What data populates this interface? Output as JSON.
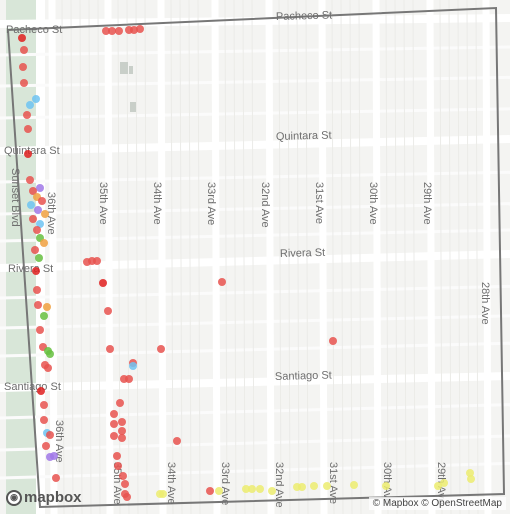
{
  "map": {
    "streets_horizontal": [
      "Pacheco St",
      "Quintara St",
      "Rivera St",
      "Santiago St"
    ],
    "streets_vertical": [
      "36th Ave",
      "35th Ave",
      "34th Ave",
      "33rd Ave",
      "32nd Ave",
      "31st Ave",
      "30th Ave",
      "29th Ave",
      "28th Ave"
    ],
    "boulevard": "Sunset Blvd",
    "colors": {
      "red": "#e8524f",
      "red_dark": "#e02020",
      "blue": "#6ec3f2",
      "purple": "#a078e8",
      "orange": "#f0a040",
      "green": "#66c040",
      "yellow": "#ecec70",
      "boundary": "#777777",
      "road": "#ffffff",
      "park": "#d8e6d8"
    }
  },
  "attribution": {
    "mapbox": "© Mapbox",
    "osm": "© OpenStreetMap"
  },
  "logo": {
    "text": "mapbox"
  }
}
